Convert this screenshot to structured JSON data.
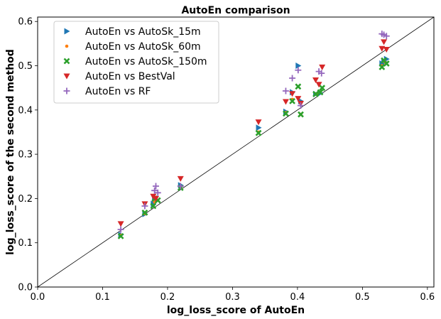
{
  "chart_data": {
    "type": "scatter",
    "title": "AutoEn comparison",
    "xlabel": "log_loss_score of AutoEn",
    "ylabel": "log_loss_score of the second method",
    "xlim": [
      0.0,
      0.61
    ],
    "ylim": [
      0.0,
      0.61
    ],
    "xticks": [
      "0.0",
      "0.1",
      "0.2",
      "0.3",
      "0.4",
      "0.5",
      "0.6"
    ],
    "yticks": [
      "0.0",
      "0.1",
      "0.2",
      "0.3",
      "0.4",
      "0.5",
      "0.6"
    ],
    "diagonal": true,
    "grid": false,
    "legend_position": "top-left",
    "series": [
      {
        "name": "AutoEn vs AutoSk_15m",
        "marker": "triangle-right",
        "color": "#1f77b4",
        "points": [
          [
            0.128,
            0.118
          ],
          [
            0.165,
            0.165
          ],
          [
            0.178,
            0.188
          ],
          [
            0.18,
            0.196
          ],
          [
            0.22,
            0.23
          ],
          [
            0.34,
            0.36
          ],
          [
            0.382,
            0.396
          ],
          [
            0.392,
            0.44
          ],
          [
            0.401,
            0.5
          ],
          [
            0.405,
            0.42
          ],
          [
            0.428,
            0.436
          ],
          [
            0.435,
            0.438
          ],
          [
            0.53,
            0.505
          ],
          [
            0.533,
            0.51
          ],
          [
            0.537,
            0.515
          ]
        ]
      },
      {
        "name": "AutoEn vs AutoSk_60m",
        "marker": "dot",
        "color": "#ff7f0e",
        "points": [
          [
            0.128,
            0.117
          ],
          [
            0.165,
            0.166
          ],
          [
            0.18,
            0.192
          ],
          [
            0.22,
            0.226
          ],
          [
            0.34,
            0.35
          ],
          [
            0.382,
            0.394
          ],
          [
            0.392,
            0.424
          ],
          [
            0.405,
            0.39
          ],
          [
            0.43,
            0.437
          ],
          [
            0.53,
            0.5
          ],
          [
            0.535,
            0.508
          ]
        ]
      },
      {
        "name": "AutoEn vs AutoSk_150m",
        "marker": "x",
        "color": "#2ca02c",
        "points": [
          [
            0.128,
            0.115
          ],
          [
            0.165,
            0.168
          ],
          [
            0.178,
            0.183
          ],
          [
            0.18,
            0.2
          ],
          [
            0.185,
            0.196
          ],
          [
            0.22,
            0.224
          ],
          [
            0.34,
            0.348
          ],
          [
            0.382,
            0.392
          ],
          [
            0.392,
            0.42
          ],
          [
            0.401,
            0.453
          ],
          [
            0.405,
            0.39
          ],
          [
            0.428,
            0.436
          ],
          [
            0.435,
            0.44
          ],
          [
            0.438,
            0.45
          ],
          [
            0.53,
            0.497
          ],
          [
            0.533,
            0.512
          ],
          [
            0.537,
            0.505
          ]
        ]
      },
      {
        "name": "AutoEn vs BestVal",
        "marker": "triangle-down",
        "color": "#d62728",
        "points": [
          [
            0.128,
            0.143
          ],
          [
            0.165,
            0.188
          ],
          [
            0.178,
            0.205
          ],
          [
            0.182,
            0.2
          ],
          [
            0.22,
            0.245
          ],
          [
            0.34,
            0.373
          ],
          [
            0.382,
            0.419
          ],
          [
            0.392,
            0.437
          ],
          [
            0.401,
            0.426
          ],
          [
            0.405,
            0.415
          ],
          [
            0.428,
            0.468
          ],
          [
            0.433,
            0.458
          ],
          [
            0.438,
            0.497
          ],
          [
            0.53,
            0.539
          ],
          [
            0.533,
            0.554
          ],
          [
            0.537,
            0.537
          ]
        ]
      },
      {
        "name": "AutoEn vs RF",
        "marker": "plus",
        "color": "#9467bd",
        "points": [
          [
            0.128,
            0.13
          ],
          [
            0.165,
            0.183
          ],
          [
            0.18,
            0.218
          ],
          [
            0.182,
            0.228
          ],
          [
            0.185,
            0.213
          ],
          [
            0.22,
            0.228
          ],
          [
            0.382,
            0.443
          ],
          [
            0.392,
            0.472
          ],
          [
            0.401,
            0.49
          ],
          [
            0.405,
            0.41
          ],
          [
            0.433,
            0.487
          ],
          [
            0.437,
            0.483
          ],
          [
            0.53,
            0.572
          ],
          [
            0.533,
            0.57
          ],
          [
            0.537,
            0.567
          ]
        ]
      }
    ]
  }
}
